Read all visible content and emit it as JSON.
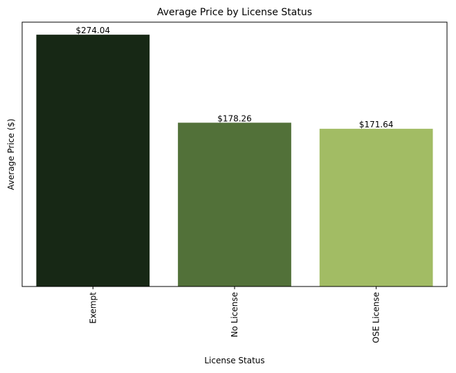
{
  "chart_data": {
    "type": "bar",
    "title": "Average Price by License Status",
    "xlabel": "License Status",
    "ylabel": "Average Price ($)",
    "categories": [
      "Exempt",
      "No License",
      "OSE License"
    ],
    "values": [
      274.04,
      178.26,
      171.64
    ],
    "data_labels": [
      "$274.04",
      "$178.26",
      "$171.64"
    ],
    "ylim": [
      0,
      287.7
    ],
    "colors": [
      "#172815",
      "#527139",
      "#a2bc64"
    ],
    "grid": false,
    "legend": "none",
    "y_ticks_visible": false
  }
}
